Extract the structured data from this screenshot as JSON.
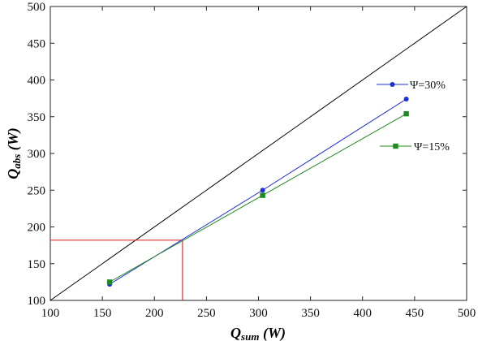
{
  "chart_data": {
    "type": "line",
    "xlim": [
      100,
      500
    ],
    "ylim": [
      100,
      500
    ],
    "x_ticks": [
      "100",
      "150",
      "200",
      "250",
      "300",
      "350",
      "400",
      "450",
      "500"
    ],
    "y_ticks": [
      "100",
      "150",
      "200",
      "250",
      "300",
      "350",
      "400",
      "450",
      "500"
    ],
    "xlabel": {
      "main": "Q",
      "sub": "sum",
      "unit": " (W)"
    },
    "ylabel": {
      "main": "Q",
      "sub": "abs",
      "unit": " (W)"
    },
    "grid": false,
    "legend_position": "right",
    "series": [
      {
        "name": "Ψ=30%",
        "color": "#1f2fd6",
        "marker": "circle",
        "x": [
          157,
          304,
          442
        ],
        "y": [
          122,
          250,
          374
        ]
      },
      {
        "name": "Ψ=15%",
        "color": "#1f8a1f",
        "marker": "square",
        "x": [
          157,
          304,
          442
        ],
        "y": [
          125,
          243,
          354
        ]
      }
    ],
    "reference_line": {
      "color": "#000000",
      "x": [
        100,
        500
      ],
      "y": [
        100,
        500
      ]
    },
    "highlight": {
      "color": "#e03030",
      "x": 227,
      "y": 182
    }
  }
}
